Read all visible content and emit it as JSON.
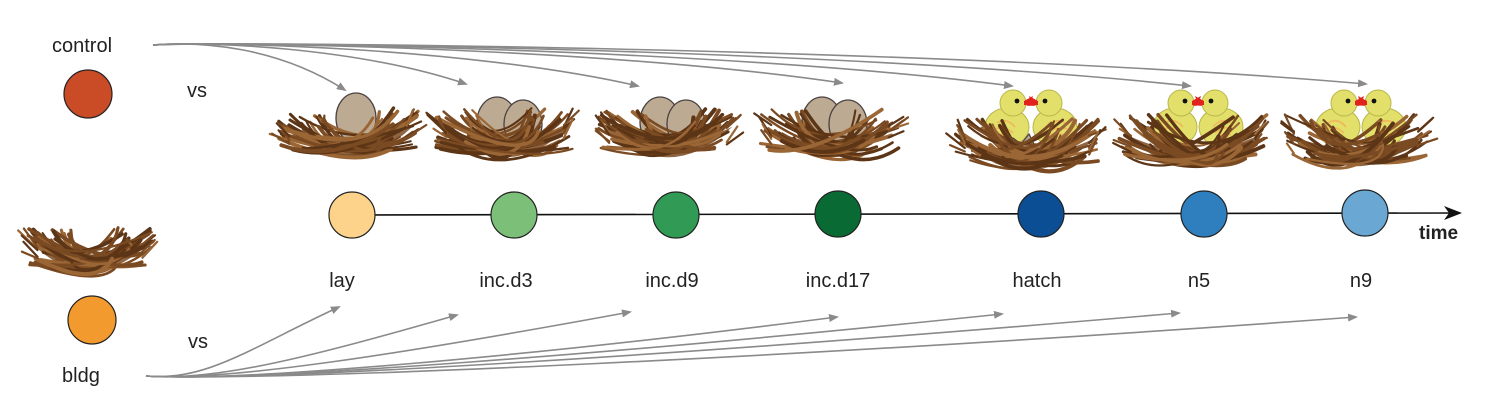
{
  "groups": {
    "control": {
      "label": "control",
      "color": "#c94c27"
    },
    "bldg": {
      "label": "bldg",
      "color": "#f39a2e"
    },
    "vs_top": "vs",
    "vs_bottom": "vs"
  },
  "timeline": {
    "axis_label": "time",
    "stages": [
      {
        "label": "lay",
        "color": "#fdd28a",
        "nest": "one-egg"
      },
      {
        "label": "inc.d3",
        "color": "#7cbf78",
        "nest": "two-eggs"
      },
      {
        "label": "inc.d9",
        "color": "#319b56",
        "nest": "two-eggs"
      },
      {
        "label": "inc.d17",
        "color": "#0a6a34",
        "nest": "two-eggs"
      },
      {
        "label": "hatch",
        "color": "#0b4e93",
        "nest": "hatching-chicks"
      },
      {
        "label": "n5",
        "color": "#2f7fbe",
        "nest": "two-chicks"
      },
      {
        "label": "n9",
        "color": "#6aa7d3",
        "nest": "two-chicks"
      }
    ]
  },
  "colors": {
    "twig_dark": "#5c3516",
    "twig_mid": "#7a4a22",
    "twig_light": "#9b6635",
    "egg": "#bcaa92",
    "egg_outline": "#4a4040",
    "chick": "#e2e06a",
    "chick_wing": "#f1b85a",
    "beak": "#e0231c",
    "arrow": "#8a8a8a"
  }
}
